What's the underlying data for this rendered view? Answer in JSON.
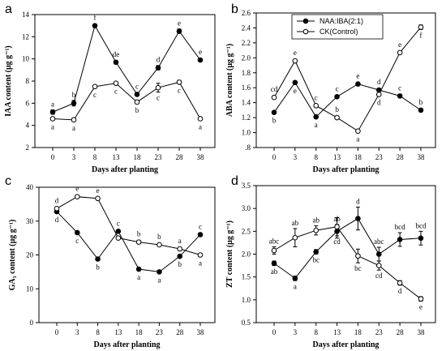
{
  "figure": {
    "panel_count": 4
  },
  "legend": {
    "series_a": "NAA:IBA(2:1)",
    "series_b": "CK(Control)"
  },
  "chart_data": [
    {
      "panel": "a",
      "type": "line",
      "xlabel": "Days after planting",
      "ylabel": "IAA content (μg g⁻¹)",
      "categories": [
        "0",
        "3",
        "8",
        "13",
        "18",
        "23",
        "28",
        "38"
      ],
      "ylim": [
        2,
        14
      ],
      "yticks": [
        "2",
        "4",
        "6",
        "8",
        "10",
        "12",
        "14"
      ],
      "series": [
        {
          "name": "NAA:IBA(2:1)",
          "marker": "filled",
          "values": [
            5.2,
            6.0,
            13.0,
            9.7,
            6.8,
            9.2,
            12.5,
            9.9
          ],
          "errors": [
            0.2,
            0.25,
            0.15,
            0.15,
            0.15,
            0.2,
            0.2,
            0.1
          ],
          "letters": [
            "a",
            "b",
            "f",
            "de",
            "c",
            "d",
            "e",
            "e"
          ],
          "letter_pos": [
            "above",
            "above",
            "above",
            "above",
            "above",
            "above",
            "above",
            "above"
          ]
        },
        {
          "name": "CK(Control)",
          "marker": "open",
          "values": [
            4.6,
            4.5,
            7.5,
            7.8,
            6.1,
            7.4,
            7.9,
            4.6
          ],
          "errors": [
            0.15,
            0.15,
            0.1,
            0.1,
            0.15,
            0.4,
            0.15,
            0.1
          ],
          "letters": [
            "a",
            "a",
            "c",
            "c",
            "b",
            "c",
            "c",
            "a"
          ],
          "letter_pos": [
            "below",
            "below",
            "below",
            "below",
            "below",
            "below",
            "below",
            "below"
          ]
        }
      ]
    },
    {
      "panel": "b",
      "type": "line",
      "xlabel": "Days after planting",
      "ylabel": "ABA content (μg g⁻¹)",
      "categories": [
        "0",
        "3",
        "8",
        "13",
        "18",
        "23",
        "28",
        "38"
      ],
      "ylim": [
        0.8,
        2.6
      ],
      "yticks": [
        ".8",
        "1.0",
        "1.2",
        "1.4",
        "1.6",
        "1.8",
        "2.0",
        "2.2",
        "2.4",
        "2.6"
      ],
      "legend_position": "top-center",
      "series": [
        {
          "name": "NAA:IBA(2:1)",
          "marker": "filled",
          "values": [
            1.27,
            1.67,
            1.21,
            1.48,
            1.65,
            1.57,
            1.49,
            1.3
          ],
          "errors": [
            0.01,
            0.01,
            0.01,
            0.01,
            0.01,
            0.01,
            0.01,
            0.01
          ],
          "letters": [
            "b",
            "e",
            "a",
            "c",
            "e",
            "d",
            "c",
            "b"
          ],
          "letter_pos": [
            "below",
            "below",
            "below",
            "above",
            "above",
            "above",
            "above",
            "above"
          ]
        },
        {
          "name": "CK(Control)",
          "marker": "open",
          "values": [
            1.47,
            1.96,
            1.36,
            1.2,
            1.02,
            1.51,
            2.07,
            2.41
          ],
          "errors": [
            0.02,
            0.02,
            0.02,
            0.01,
            0.01,
            0.01,
            0.02,
            0.03
          ],
          "letters": [
            "cd",
            "e",
            "c",
            "b",
            "a",
            "d",
            "e",
            "f"
          ],
          "letter_pos": [
            "above",
            "above",
            "above",
            "above",
            "below",
            "below",
            "above",
            "below"
          ]
        }
      ]
    },
    {
      "panel": "c",
      "type": "line",
      "xlabel": "Days after planting",
      "ylabel": "GA₃ content (μg g⁻¹)",
      "categories": [
        "0",
        "3",
        "8",
        "13",
        "18",
        "23",
        "28",
        "38"
      ],
      "ylim": [
        0,
        40
      ],
      "yticks": [
        "0",
        "10",
        "20",
        "30",
        "40"
      ],
      "series": [
        {
          "name": "NAA:IBA(2:1)",
          "marker": "filled",
          "values": [
            32.8,
            26.6,
            18.8,
            27.0,
            15.8,
            15.0,
            19.6,
            26.0
          ],
          "errors": [
            0.4,
            0.3,
            0.3,
            0.3,
            0.3,
            0.3,
            0.4,
            0.4
          ],
          "letters": [
            "d",
            "c",
            "b",
            "c",
            "a",
            "a",
            "b",
            "c"
          ],
          "letter_pos": [
            "below",
            "below",
            "below",
            "above",
            "below",
            "below",
            "below",
            "above"
          ]
        },
        {
          "name": "CK(Control)",
          "marker": "open",
          "values": [
            33.7,
            37.2,
            36.7,
            25.0,
            23.8,
            23.0,
            21.8,
            20.0
          ],
          "errors": [
            0.4,
            0.3,
            0.4,
            0.3,
            0.4,
            0.3,
            0.4,
            0.3
          ],
          "letters": [
            "d",
            "e",
            "e",
            "c",
            "b",
            "b",
            "a",
            "a"
          ],
          "letter_pos": [
            "above",
            "above",
            "above",
            "above",
            "above",
            "above",
            "above",
            "below"
          ]
        }
      ]
    },
    {
      "panel": "d",
      "type": "line",
      "xlabel": "Days after planting",
      "ylabel": "ZT content (μg g⁻¹)",
      "categories": [
        "0",
        "3",
        "8",
        "13",
        "18",
        "23",
        "28",
        "38"
      ],
      "ylim": [
        0.5,
        3.5
      ],
      "yticks": [
        "0.5",
        "1.0",
        "1.5",
        "2.0",
        "2.5",
        "3.0",
        "3.5"
      ],
      "series": [
        {
          "name": "NAA:IBA(2:1)",
          "marker": "filled",
          "values": [
            1.8,
            1.47,
            2.05,
            2.5,
            2.78,
            2.0,
            2.32,
            2.35
          ],
          "errors": [
            0.05,
            0.05,
            0.05,
            0.15,
            0.25,
            0.15,
            0.15,
            0.15
          ],
          "letters": [
            "ab",
            "a",
            "bc",
            "ab",
            "d",
            "abc",
            "bcd",
            "bcd"
          ],
          "letter_pos": [
            "below",
            "below",
            "below",
            "above",
            "above",
            "above",
            "above",
            "above"
          ]
        },
        {
          "name": "CK(Control)",
          "marker": "open",
          "values": [
            2.08,
            2.36,
            2.52,
            2.6,
            1.96,
            1.75,
            1.37,
            1.02
          ],
          "errors": [
            0.08,
            0.2,
            0.1,
            0.2,
            0.15,
            0.1,
            0.05,
            0.05
          ],
          "letters": [
            "abc",
            "ab",
            "ab",
            "cd",
            "bc",
            "cd",
            "d",
            "e"
          ],
          "letter_pos": [
            "above",
            "above",
            "above",
            "below",
            "below",
            "below",
            "below",
            "below"
          ]
        }
      ]
    }
  ]
}
